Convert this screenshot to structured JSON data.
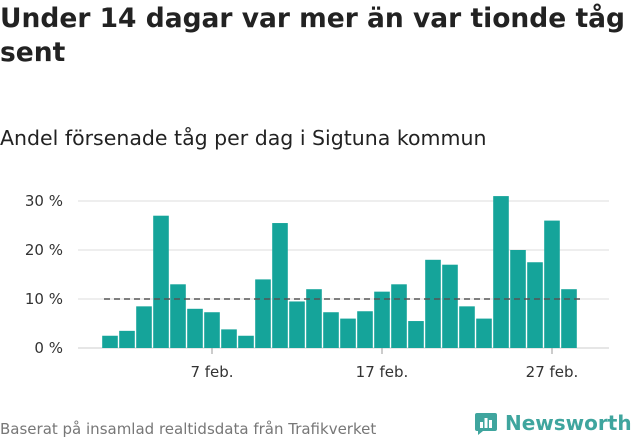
{
  "header": {
    "title": "Under 14 dagar var mer än var tionde tåg sent",
    "subtitle": "Andel försenade tåg per dag i Sigtuna kommun"
  },
  "footer": {
    "source": "Baserat på insamlad realtidsdata från Trafikverket",
    "brand": "Newsworthy",
    "brand_icon": "newsworthy-logo-icon"
  },
  "colors": {
    "bar": "#15a49a",
    "reference_line": "#555555",
    "grid": "#dddddd",
    "brand": "#3fa59e"
  },
  "chart_data": {
    "type": "bar",
    "title": "",
    "xlabel": "",
    "ylabel": "",
    "x": [
      "1 feb.",
      "2 feb.",
      "3 feb.",
      "4 feb.",
      "5 feb.",
      "6 feb.",
      "7 feb.",
      "8 feb.",
      "9 feb.",
      "10 feb.",
      "11 feb.",
      "12 feb.",
      "13 feb.",
      "14 feb.",
      "15 feb.",
      "16 feb.",
      "17 feb.",
      "18 feb.",
      "19 feb.",
      "20 feb.",
      "21 feb.",
      "22 feb.",
      "23 feb.",
      "24 feb.",
      "25 feb.",
      "26 feb.",
      "27 feb.",
      "28 feb."
    ],
    "values": [
      2.5,
      3.5,
      8.5,
      27,
      13,
      8,
      7.3,
      3.8,
      2.5,
      14,
      25.5,
      9.5,
      12,
      7.3,
      6,
      7.5,
      11.5,
      13,
      5.5,
      18,
      17,
      8.5,
      6,
      31,
      20,
      17.5,
      26,
      12
    ],
    "x_ticks": [
      {
        "category": "7 feb.",
        "label": "7 feb."
      },
      {
        "category": "17 feb.",
        "label": "17 feb."
      },
      {
        "category": "27 feb.",
        "label": "27 feb."
      }
    ],
    "y_ticks": [
      {
        "value": 0,
        "label": "0 %"
      },
      {
        "value": 10,
        "label": "10 %"
      },
      {
        "value": 20,
        "label": "20 %"
      },
      {
        "value": 30,
        "label": "30 %"
      }
    ],
    "ylim": [
      0,
      32
    ],
    "reference_line": 10,
    "grid": true,
    "legend": "none"
  }
}
